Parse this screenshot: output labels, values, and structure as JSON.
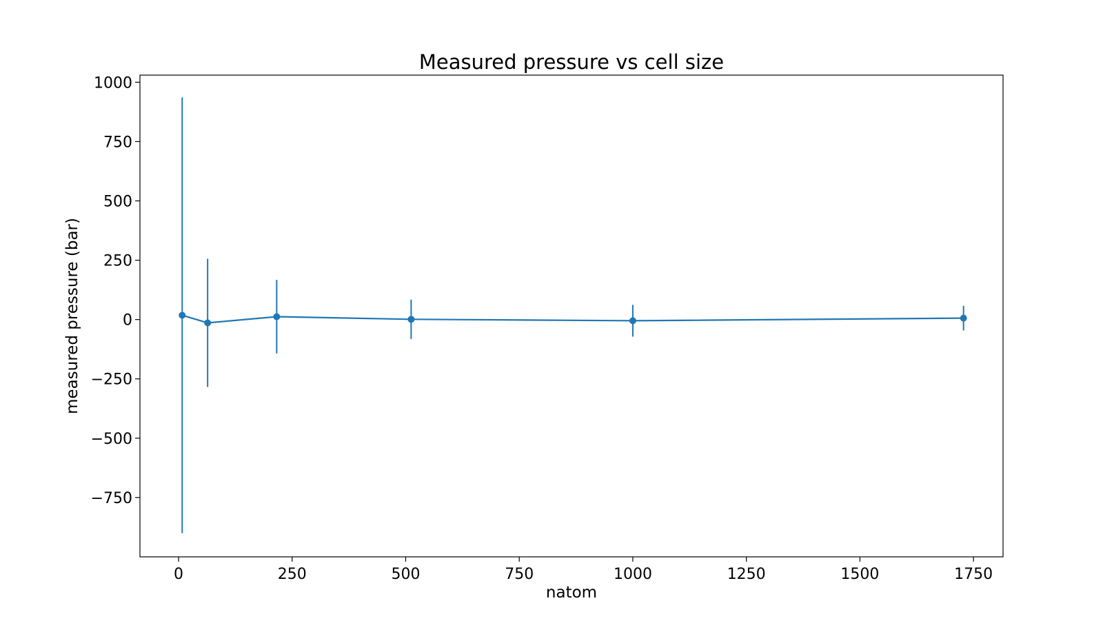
{
  "chart_data": {
    "type": "line",
    "title": "Measured pressure vs cell size",
    "xlabel": "natom",
    "ylabel": "measured pressure (bar)",
    "xlim": [
      -85,
      1815
    ],
    "ylim": [
      -1000,
      1030
    ],
    "x_ticks": [
      0,
      250,
      500,
      750,
      1000,
      1250,
      1500,
      1750
    ],
    "x_tick_labels": [
      "0",
      "250",
      "500",
      "750",
      "1000",
      "1250",
      "1500",
      "1750"
    ],
    "y_ticks": [
      1000,
      750,
      500,
      250,
      0,
      -250,
      -500,
      -750
    ],
    "y_tick_labels": [
      "1000",
      "750",
      "500",
      "250",
      "0",
      "−250",
      "−500",
      "−750"
    ],
    "grid": false,
    "series": [
      {
        "color": "#1f77b4",
        "marker": "circle",
        "x": [
          8,
          64,
          216,
          512,
          1000,
          1728
        ],
        "y": [
          18,
          -14,
          12,
          1,
          -5,
          6
        ],
        "yerr": [
          918,
          270,
          155,
          83,
          67,
          52
        ]
      }
    ]
  }
}
